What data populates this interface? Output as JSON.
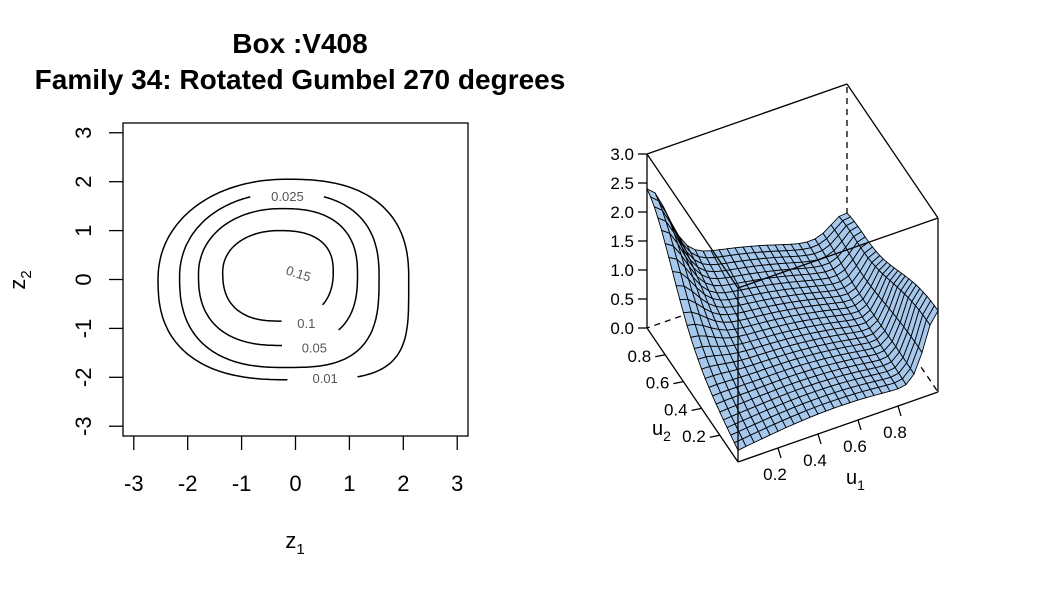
{
  "title": {
    "line1": "Box :V408",
    "line2": "Family 34: Rotated Gumbel 270 degrees"
  },
  "chart_data": [
    {
      "type": "contour",
      "xlabel": "z",
      "xlabel_sub": "1",
      "ylabel": "z",
      "ylabel_sub": "2",
      "xlim": [
        -3.2,
        3.2
      ],
      "ylim": [
        -3.2,
        3.2
      ],
      "x_ticks": [
        -3,
        -2,
        -1,
        0,
        1,
        2,
        3
      ],
      "y_ticks": [
        -3,
        -2,
        -1,
        0,
        1,
        2,
        3
      ],
      "levels": [
        {
          "label": "0.01",
          "value": 0.01
        },
        {
          "label": "0.025",
          "value": 0.025
        },
        {
          "label": "0.05",
          "value": 0.05
        },
        {
          "label": "0.1",
          "value": 0.1
        },
        {
          "label": "0.15",
          "value": 0.15
        }
      ],
      "grid": false
    },
    {
      "type": "surface",
      "xlabel": "u",
      "xlabel_sub": "1",
      "ylabel": "u",
      "ylabel_sub": "2",
      "u1_ticks": [
        0.2,
        0.4,
        0.6,
        0.8
      ],
      "u2_ticks": [
        0.2,
        0.4,
        0.6,
        0.8
      ],
      "z_ticks": [
        "0.0",
        "0.5",
        "1.0",
        "1.5",
        "2.0",
        "2.5",
        "3.0"
      ],
      "zlim": [
        0,
        3
      ],
      "surface_color": "#a6c8ec",
      "mesh_color": "#000000",
      "grid_n": 25
    }
  ]
}
